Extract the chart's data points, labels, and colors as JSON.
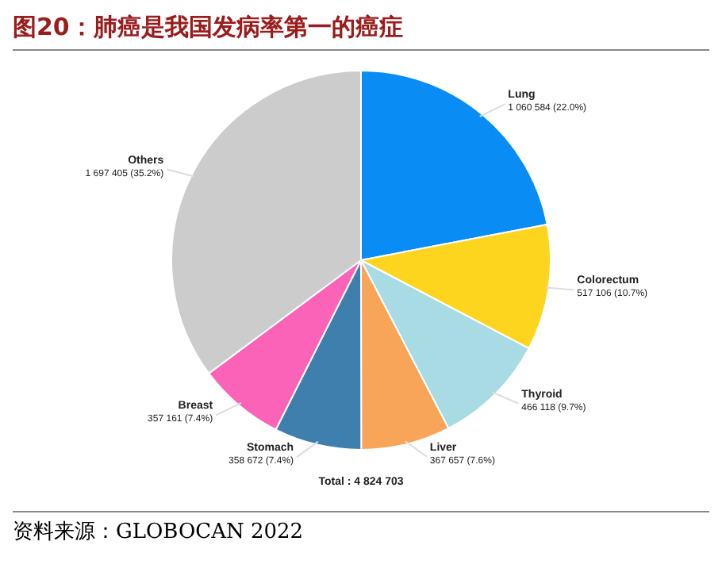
{
  "chart_data": {
    "type": "pie",
    "title": "图20：肺癌是我国发病率第一的癌症",
    "categories": [
      "Lung",
      "Colorectum",
      "Thyroid",
      "Liver",
      "Stomach",
      "Breast",
      "Others"
    ],
    "values": [
      1060584,
      517106,
      466118,
      367657,
      358672,
      357161,
      1697405
    ],
    "value_labels": [
      "1 060 584 (22.0%)",
      "517 106 (10.7%)",
      "466 118 (9.7%)",
      "367 657 (7.6%)",
      "358 672 (7.4%)",
      "357 161 (7.4%)",
      "1 697 405 (35.2%)"
    ],
    "colors": [
      "#0a8cf5",
      "#fdd41e",
      "#a8dbe3",
      "#f8a55a",
      "#3e7fae",
      "#fa63b7",
      "#cccccc"
    ],
    "annotations": [
      "Total : 4 824 703",
      "资料来源：GLOBOCAN 2022"
    ]
  }
}
